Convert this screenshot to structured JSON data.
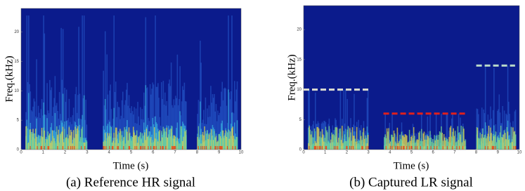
{
  "chart_data": [
    {
      "type": "spectrogram",
      "title": "(a) Reference HR signal",
      "xlabel": "Time (s)",
      "ylabel": "Freq.(kHz)",
      "xlim": [
        0,
        10
      ],
      "ylim": [
        0,
        24
      ],
      "xticks": [
        0,
        1,
        2,
        3,
        4,
        5,
        6,
        7,
        8,
        9,
        10
      ],
      "yticks": [
        0,
        5,
        10,
        15,
        20
      ],
      "band_limits": []
    },
    {
      "type": "spectrogram",
      "title": "(b) Captured LR signal",
      "xlabel": "Time (s)",
      "ylabel": "Freq.(kHz)",
      "xlim": [
        0,
        10
      ],
      "ylim": [
        0,
        24
      ],
      "xticks": [
        0,
        1,
        2,
        3,
        4,
        5,
        6,
        7,
        8,
        9,
        10
      ],
      "yticks": [
        0,
        5,
        10,
        15,
        20
      ],
      "band_limits": [
        {
          "x": [
            0,
            3
          ],
          "y": 10,
          "color": "#dcdcd0"
        },
        {
          "x": [
            3.7,
            7.5
          ],
          "y": 6,
          "color": "#e0201c"
        },
        {
          "x": [
            8,
            9.8
          ],
          "y": 14,
          "color": "#b8d8c8"
        }
      ]
    }
  ]
}
